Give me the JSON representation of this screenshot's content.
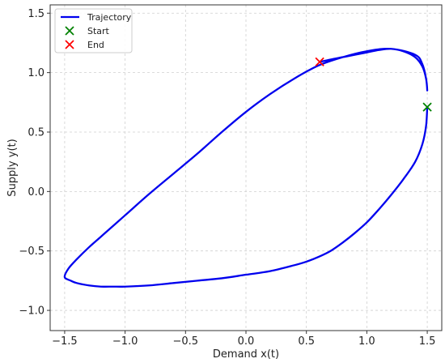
{
  "chart_data": {
    "type": "line",
    "xlabel": "Demand x(t)",
    "ylabel": "Supply y(t)",
    "xlim": [
      -1.62,
      1.62
    ],
    "ylim": [
      -1.17,
      1.57
    ],
    "xticks": [
      -1.5,
      -1.0,
      -0.5,
      0.0,
      0.5,
      1.0,
      1.5
    ],
    "xtick_labels": [
      "−1.5",
      "−1.0",
      "−0.5",
      "0.0",
      "0.5",
      "1.0",
      "1.5"
    ],
    "yticks": [
      -1.0,
      -0.5,
      0.0,
      0.5,
      1.0,
      1.5
    ],
    "ytick_labels": [
      "−1.0",
      "−0.5",
      "0.0",
      "0.5",
      "1.0",
      "1.5"
    ],
    "grid": true,
    "legend_position": "top-left",
    "series": [
      {
        "name": "Trajectory",
        "kind": "line",
        "color": "#0000ee",
        "x": [
          1.5,
          1.49,
          1.46,
          1.4,
          1.3,
          1.2,
          1.1,
          1.0,
          0.9,
          0.8,
          0.7,
          0.6,
          0.5,
          0.4,
          0.2,
          0.0,
          -0.2,
          -0.4,
          -0.6,
          -0.8,
          -1.0,
          -1.1,
          -1.2,
          -1.3,
          -1.4,
          -1.45,
          -1.5,
          -1.47,
          -1.4,
          -1.3,
          -1.2,
          -1.0,
          -0.8,
          -0.6,
          -0.4,
          -0.2,
          0.0,
          0.2,
          0.4,
          0.6,
          0.8,
          1.0,
          1.2,
          1.4,
          1.46,
          1.49,
          1.5,
          1.49,
          1.46,
          1.4,
          1.3,
          1.2,
          1.1,
          1.0,
          0.9,
          0.8,
          0.7,
          0.61
        ],
        "y": [
          0.71,
          0.55,
          0.4,
          0.25,
          0.1,
          -0.03,
          -0.15,
          -0.26,
          -0.35,
          -0.43,
          -0.5,
          -0.55,
          -0.59,
          -0.62,
          -0.67,
          -0.7,
          -0.73,
          -0.75,
          -0.77,
          -0.79,
          -0.8,
          -0.8,
          -0.8,
          -0.79,
          -0.77,
          -0.75,
          -0.72,
          -0.65,
          -0.57,
          -0.47,
          -0.38,
          -0.2,
          -0.02,
          0.15,
          0.32,
          0.5,
          0.67,
          0.82,
          0.95,
          1.06,
          1.13,
          1.18,
          1.2,
          1.15,
          1.07,
          0.95,
          0.85,
          0.95,
          1.05,
          1.13,
          1.18,
          1.2,
          1.19,
          1.17,
          1.15,
          1.13,
          1.11,
          1.09
        ]
      },
      {
        "name": "Start",
        "kind": "marker",
        "marker": "x",
        "color": "#008000",
        "x": [
          1.5
        ],
        "y": [
          0.71
        ]
      },
      {
        "name": "End",
        "kind": "marker",
        "marker": "x",
        "color": "#ff0000",
        "x": [
          0.61
        ],
        "y": [
          1.09
        ]
      }
    ]
  }
}
